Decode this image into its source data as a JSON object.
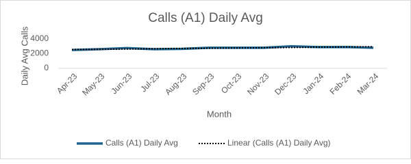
{
  "chart_data": {
    "type": "line",
    "title": "Calls (A1) Daily Avg",
    "x_label": "Month",
    "y_label": "Daily Avg Calls",
    "categories": [
      "Apr-23",
      "May-23",
      "Jun-23",
      "Jul-23",
      "Aug-23",
      "Sep-23",
      "Oct-23",
      "Nov-23",
      "Dec-23",
      "Jan-24",
      "Feb-24",
      "Mar-24"
    ],
    "series": [
      {
        "name": "Calls (A1) Daily Avg",
        "color": "#1f6391",
        "style": "solid",
        "values": [
          2500,
          2600,
          2750,
          2600,
          2650,
          2800,
          2800,
          2800,
          3000,
          2900,
          2900,
          2800
        ]
      },
      {
        "name": "Linear (Calls (A1) Daily Avg)",
        "color": "#000000",
        "style": "dotted",
        "values": [
          2560,
          2595,
          2630,
          2665,
          2700,
          2735,
          2770,
          2805,
          2840,
          2875,
          2910,
          2945
        ]
      }
    ],
    "ylim": [
      0,
      4000
    ],
    "yticks": [
      0,
      2000,
      4000
    ],
    "legend": "bottom"
  }
}
